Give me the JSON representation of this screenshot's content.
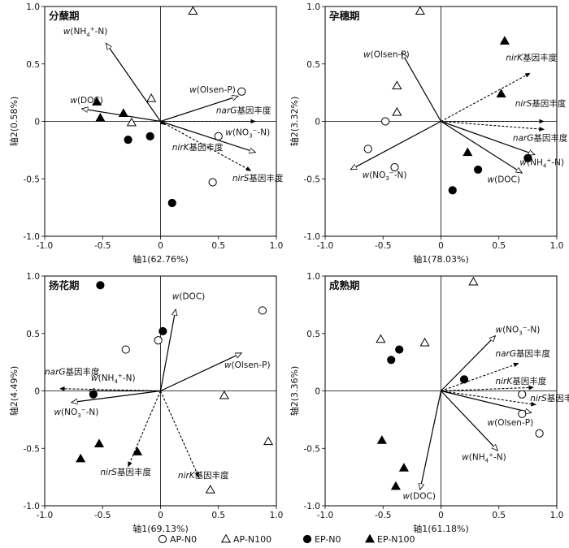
{
  "legend": [
    {
      "label": "AP-N0",
      "marker": "circle-open"
    },
    {
      "label": "AP-N100",
      "marker": "triangle-open"
    },
    {
      "label": "EP-N0",
      "marker": "circle-filled"
    },
    {
      "label": "EP-N100",
      "marker": "triangle-filled"
    }
  ],
  "chart_data": [
    {
      "type": "scatter",
      "title": "分蘖期",
      "xlabel": "轴1(62.76%)",
      "ylabel": "轴2(0.58%)",
      "xlim": [
        -1.0,
        1.0
      ],
      "ylim": [
        -1.0,
        1.0
      ],
      "xticks": [
        "-1.0",
        "-0.5",
        "0",
        "0.5",
        "1.0"
      ],
      "yticks": [
        "-1.0",
        "-0.5",
        "0",
        "0.5",
        "1.0"
      ],
      "series": [
        {
          "name": "AP-N0",
          "marker": "circle-open",
          "points": [
            [
              0.7,
              0.26
            ],
            [
              0.5,
              -0.13
            ],
            [
              0.45,
              -0.53
            ]
          ]
        },
        {
          "name": "AP-N100",
          "marker": "triangle-open",
          "points": [
            [
              0.28,
              0.96
            ],
            [
              -0.08,
              0.2
            ],
            [
              -0.25,
              -0.01
            ]
          ]
        },
        {
          "name": "EP-N0",
          "marker": "circle-filled",
          "points": [
            [
              -0.28,
              -0.16
            ],
            [
              -0.09,
              -0.13
            ],
            [
              0.1,
              -0.71
            ]
          ]
        },
        {
          "name": "EP-N100",
          "marker": "triangle-filled",
          "points": [
            [
              -0.55,
              0.17
            ],
            [
              -0.32,
              0.07
            ],
            [
              -0.52,
              0.03
            ]
          ]
        }
      ],
      "vectors": [
        {
          "label": "w(NH4+-N)",
          "x": -0.47,
          "y": 0.68,
          "style": "solid",
          "labelPos": [
            -0.84,
            0.76
          ]
        },
        {
          "label": "w(DOC)",
          "x": -0.68,
          "y": 0.11,
          "style": "solid",
          "labelPos": [
            -0.78,
            0.16
          ]
        },
        {
          "label": "w(Olsen-P)",
          "x": 0.67,
          "y": 0.22,
          "style": "solid",
          "labelPos": [
            0.25,
            0.25
          ]
        },
        {
          "label": "w(NO3−-N)",
          "x": 0.82,
          "y": -0.27,
          "style": "solid",
          "labelPos": [
            0.56,
            -0.12
          ]
        },
        {
          "label": "narG基因丰度",
          "x": 0.82,
          "y": 0.0,
          "style": "dashed",
          "labelPos": [
            0.48,
            0.07
          ]
        },
        {
          "label": "nirS基因丰度",
          "x": 0.78,
          "y": -0.43,
          "style": "dashed",
          "labelPos": [
            0.62,
            -0.52
          ]
        },
        {
          "label": "nirK基因丰度",
          "x": 0.04,
          "y": -0.03,
          "style": "dashed",
          "labelPos": [
            0.1,
            -0.25
          ]
        }
      ]
    },
    {
      "type": "scatter",
      "title": "孕穗期",
      "xlabel": "轴1(78.03%)",
      "ylabel": "轴2(3.32%)",
      "xlim": [
        -1.0,
        1.0
      ],
      "ylim": [
        -1.0,
        1.0
      ],
      "xticks": [
        "-1.0",
        "-0.5",
        "0",
        "0.5",
        "1.0"
      ],
      "yticks": [
        "-1.0",
        "-0.5",
        "0",
        "0.5",
        "1.0"
      ],
      "series": [
        {
          "name": "AP-N0",
          "marker": "circle-open",
          "points": [
            [
              -0.48,
              0.0
            ],
            [
              -0.63,
              -0.24
            ],
            [
              -0.4,
              -0.4
            ]
          ]
        },
        {
          "name": "AP-N100",
          "marker": "triangle-open",
          "points": [
            [
              -0.18,
              0.96
            ],
            [
              -0.38,
              0.31
            ],
            [
              -0.38,
              0.08
            ]
          ]
        },
        {
          "name": "EP-N0",
          "marker": "circle-filled",
          "points": [
            [
              0.1,
              -0.6
            ],
            [
              0.32,
              -0.42
            ],
            [
              0.75,
              -0.32
            ]
          ]
        },
        {
          "name": "EP-N100",
          "marker": "triangle-filled",
          "points": [
            [
              0.55,
              0.7
            ],
            [
              0.52,
              0.24
            ],
            [
              0.23,
              -0.27
            ]
          ]
        }
      ],
      "vectors": [
        {
          "label": "w(Olsen-P)",
          "x": -0.34,
          "y": 0.6,
          "style": "solid",
          "labelPos": [
            -0.67,
            0.56
          ]
        },
        {
          "label": "w(NO3−-N)",
          "x": -0.78,
          "y": -0.42,
          "style": "solid",
          "labelPos": [
            -0.68,
            -0.49
          ]
        },
        {
          "label": "w(NH4+-N)",
          "x": 0.81,
          "y": -0.29,
          "style": "solid",
          "labelPos": [
            0.68,
            -0.38
          ]
        },
        {
          "label": "w(DOC)",
          "x": 0.7,
          "y": -0.45,
          "style": "solid",
          "labelPos": [
            0.4,
            -0.53
          ]
        },
        {
          "label": "nirK基因丰度",
          "x": 0.77,
          "y": 0.42,
          "style": "dashed",
          "labelPos": [
            0.56,
            0.53
          ]
        },
        {
          "label": "nirS基因丰度",
          "x": 0.89,
          "y": 0.0,
          "style": "dashed",
          "labelPos": [
            0.64,
            0.13
          ]
        },
        {
          "label": "narG基因丰度",
          "x": 0.89,
          "y": -0.07,
          "style": "dashed",
          "labelPos": [
            0.62,
            -0.17
          ]
        }
      ]
    },
    {
      "type": "scatter",
      "title": "扬花期",
      "xlabel": "轴1(69.13%)",
      "ylabel": "轴2(4.49%)",
      "xlim": [
        -1.0,
        1.0
      ],
      "ylim": [
        -1.0,
        1.0
      ],
      "xticks": [
        "-1.0",
        "-0.5",
        "0",
        "0.5",
        "1.0"
      ],
      "yticks": [
        "-1.0",
        "-0.5",
        "0",
        "0.5",
        "1.0"
      ],
      "series": [
        {
          "name": "AP-N0",
          "marker": "circle-open",
          "points": [
            [
              0.88,
              0.7
            ],
            [
              -0.3,
              0.36
            ],
            [
              -0.02,
              0.44
            ]
          ]
        },
        {
          "name": "AP-N100",
          "marker": "triangle-open",
          "points": [
            [
              0.55,
              -0.04
            ],
            [
              0.93,
              -0.44
            ],
            [
              0.43,
              -0.86
            ]
          ]
        },
        {
          "name": "EP-N0",
          "marker": "circle-filled",
          "points": [
            [
              -0.52,
              0.92
            ],
            [
              0.02,
              0.52
            ],
            [
              -0.58,
              -0.03
            ]
          ]
        },
        {
          "name": "EP-N100",
          "marker": "triangle-filled",
          "points": [
            [
              -0.53,
              -0.46
            ],
            [
              -0.2,
              -0.53
            ],
            [
              -0.69,
              -0.59
            ]
          ]
        }
      ],
      "vectors": [
        {
          "label": "w(DOC)",
          "x": 0.13,
          "y": 0.71,
          "style": "solid",
          "labelPos": [
            0.1,
            0.8
          ]
        },
        {
          "label": "w(Olsen-P)",
          "x": 0.7,
          "y": 0.33,
          "style": "solid",
          "labelPos": [
            0.55,
            0.2
          ]
        },
        {
          "label": "w(NH4+-N)",
          "x": -0.62,
          "y": 0.0,
          "style": "solid",
          "labelPos": [
            -0.6,
            0.09
          ]
        },
        {
          "label": "w(NO3−-N)",
          "x": -0.77,
          "y": -0.1,
          "style": "solid",
          "labelPos": [
            -0.92,
            -0.21
          ]
        },
        {
          "label": "narG基因丰度",
          "x": -0.87,
          "y": 0.02,
          "style": "dashed",
          "labelPos": [
            -1.0,
            0.14
          ]
        },
        {
          "label": "nirS基因丰度",
          "x": -0.28,
          "y": -0.66,
          "style": "dashed",
          "labelPos": [
            -0.52,
            -0.73
          ]
        },
        {
          "label": "nirK基因丰度",
          "x": 0.33,
          "y": -0.75,
          "style": "dashed",
          "labelPos": [
            0.15,
            -0.76
          ]
        }
      ]
    },
    {
      "type": "scatter",
      "title": "成熟期",
      "xlabel": "轴1(61.18%)",
      "ylabel": "轴2(3.36%)",
      "xlim": [
        -1.0,
        1.0
      ],
      "ylim": [
        -1.0,
        1.0
      ],
      "xticks": [
        "-1.0",
        "-0.5",
        "0",
        "0.5",
        "1.0"
      ],
      "yticks": [
        "-1.0",
        "-0.5",
        "0",
        "0.5",
        "1.0"
      ],
      "series": [
        {
          "name": "AP-N0",
          "marker": "circle-open",
          "points": [
            [
              0.7,
              -0.03
            ],
            [
              0.7,
              -0.2
            ],
            [
              0.85,
              -0.37
            ]
          ]
        },
        {
          "name": "AP-N100",
          "marker": "triangle-open",
          "points": [
            [
              0.28,
              0.95
            ],
            [
              -0.52,
              0.45
            ],
            [
              -0.14,
              0.42
            ]
          ]
        },
        {
          "name": "EP-N0",
          "marker": "circle-filled",
          "points": [
            [
              -0.43,
              0.27
            ],
            [
              -0.36,
              0.36
            ],
            [
              0.2,
              0.1
            ]
          ]
        },
        {
          "name": "EP-N100",
          "marker": "triangle-filled",
          "points": [
            [
              -0.51,
              -0.43
            ],
            [
              -0.32,
              -0.67
            ],
            [
              -0.39,
              -0.83
            ]
          ]
        }
      ],
      "vectors": [
        {
          "label": "w(NO3−-N)",
          "x": 0.47,
          "y": 0.48,
          "style": "solid",
          "labelPos": [
            0.47,
            0.51
          ]
        },
        {
          "label": "w(Olsen-P)",
          "x": 0.78,
          "y": -0.19,
          "style": "solid",
          "labelPos": [
            0.4,
            -0.3
          ]
        },
        {
          "label": "w(NH4+-N)",
          "x": 0.49,
          "y": -0.52,
          "style": "solid",
          "labelPos": [
            0.18,
            -0.6
          ]
        },
        {
          "label": "w(DOC)",
          "x": -0.18,
          "y": -0.86,
          "style": "solid",
          "labelPos": [
            -0.33,
            -0.94
          ]
        },
        {
          "label": "narG基因丰度",
          "x": 0.67,
          "y": 0.24,
          "style": "dashed",
          "labelPos": [
            0.47,
            0.3
          ]
        },
        {
          "label": "nirK基因丰度",
          "x": 0.8,
          "y": 0.03,
          "style": "dashed",
          "labelPos": [
            0.47,
            0.06
          ]
        },
        {
          "label": "nirS基因丰度",
          "x": 0.82,
          "y": -0.12,
          "style": "dashed",
          "labelPos": [
            0.77,
            -0.09
          ]
        }
      ]
    }
  ]
}
